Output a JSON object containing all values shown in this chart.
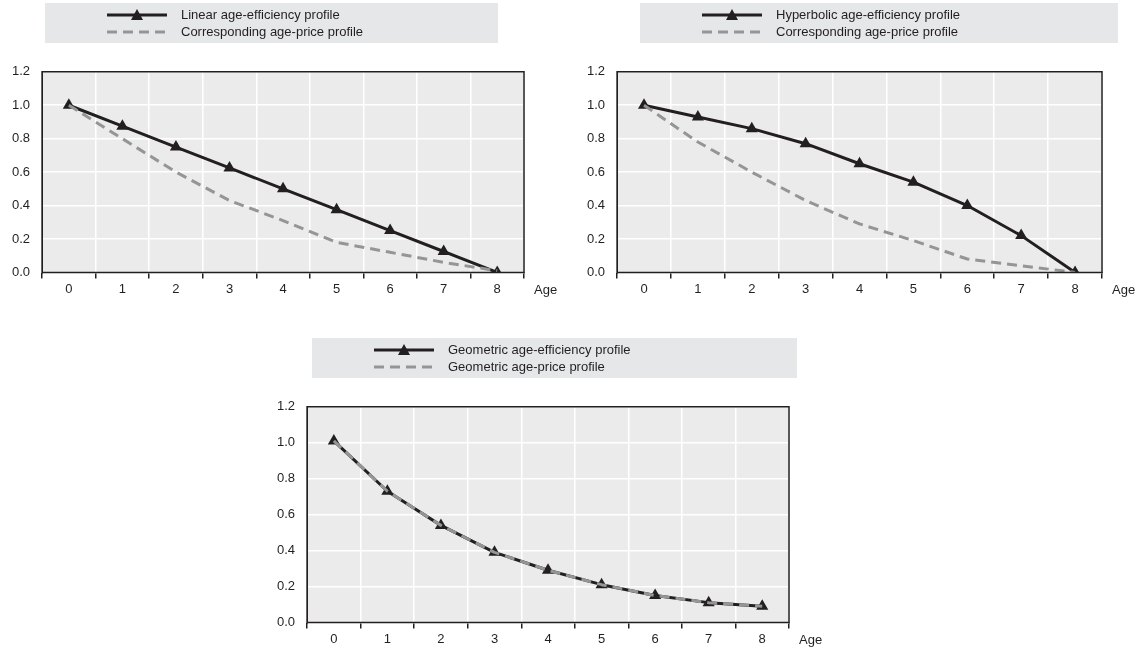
{
  "chart_data": [
    {
      "type": "line",
      "categories": [
        "0",
        "1",
        "2",
        "3",
        "4",
        "5",
        "6",
        "7",
        "8"
      ],
      "xlabel": "Age",
      "ylim": [
        0,
        1.2
      ],
      "yticks": [
        {
          "value": 0,
          "label": "0.0"
        },
        {
          "value": 0.2,
          "label": "0.2"
        },
        {
          "value": 0.4,
          "label": "0.4"
        },
        {
          "value": 0.6,
          "label": "0.6"
        },
        {
          "value": 0.8,
          "label": "0.8"
        },
        {
          "value": 1,
          "label": "1.0"
        },
        {
          "value": 1.2,
          "label": "1.2"
        }
      ],
      "grid": true,
      "legend": "top",
      "series": [
        {
          "name": "Linear age-efficiency profile",
          "color": "#231f20",
          "marker": "triangle",
          "line_style": "solid",
          "values": [
            1,
            0.875,
            0.75,
            0.625,
            0.5,
            0.375,
            0.25,
            0.125,
            0
          ]
        },
        {
          "name": "Corresponding age-price profile",
          "color": "#939598",
          "marker": "none",
          "line_style": "dashed",
          "values": [
            1,
            0.8,
            0.6,
            0.43,
            0.31,
            0.18,
            0.12,
            0.06,
            0.01
          ]
        }
      ]
    },
    {
      "type": "line",
      "categories": [
        "0",
        "1",
        "2",
        "3",
        "4",
        "5",
        "6",
        "7",
        "8"
      ],
      "xlabel": "Age",
      "ylim": [
        0,
        1.2
      ],
      "yticks": [
        {
          "value": 0,
          "label": "0.0"
        },
        {
          "value": 0.2,
          "label": "0.2"
        },
        {
          "value": 0.4,
          "label": "0.4"
        },
        {
          "value": 0.6,
          "label": "0.6"
        },
        {
          "value": 0.8,
          "label": "0.8"
        },
        {
          "value": 1,
          "label": "1.0"
        },
        {
          "value": 1.2,
          "label": "1.2"
        }
      ],
      "grid": true,
      "legend": "top",
      "series": [
        {
          "name": "Hyperbolic age-efficiency profile",
          "color": "#231f20",
          "marker": "triangle",
          "line_style": "solid",
          "values": [
            1,
            0.93,
            0.86,
            0.77,
            0.65,
            0.54,
            0.4,
            0.22,
            0
          ]
        },
        {
          "name": "Corresponding age-price profile",
          "color": "#939598",
          "marker": "none",
          "line_style": "dashed",
          "values": [
            1,
            0.78,
            0.6,
            0.43,
            0.29,
            0.19,
            0.08,
            0.04,
            0
          ]
        }
      ]
    },
    {
      "type": "line",
      "categories": [
        "0",
        "1",
        "2",
        "3",
        "4",
        "5",
        "6",
        "7",
        "8"
      ],
      "xlabel": "Age",
      "ylim": [
        0,
        1.2
      ],
      "yticks": [
        {
          "value": 0,
          "label": "0.0"
        },
        {
          "value": 0.2,
          "label": "0.2"
        },
        {
          "value": 0.4,
          "label": "0.4"
        },
        {
          "value": 0.6,
          "label": "0.6"
        },
        {
          "value": 0.8,
          "label": "0.8"
        },
        {
          "value": 1,
          "label": "1.0"
        },
        {
          "value": 1.2,
          "label": "1.2"
        }
      ],
      "grid": true,
      "legend": "top",
      "series": [
        {
          "name": "Geometric age-efficiency profile",
          "color": "#231f20",
          "marker": "triangle",
          "line_style": "solid",
          "values": [
            1.01,
            0.73,
            0.54,
            0.39,
            0.29,
            0.21,
            0.15,
            0.11,
            0.09
          ]
        },
        {
          "name": "Geometric age-price profile",
          "color": "#939598",
          "marker": "none",
          "line_style": "dashed",
          "values": [
            1.01,
            0.73,
            0.54,
            0.39,
            0.29,
            0.21,
            0.15,
            0.11,
            0.09
          ]
        }
      ]
    }
  ]
}
